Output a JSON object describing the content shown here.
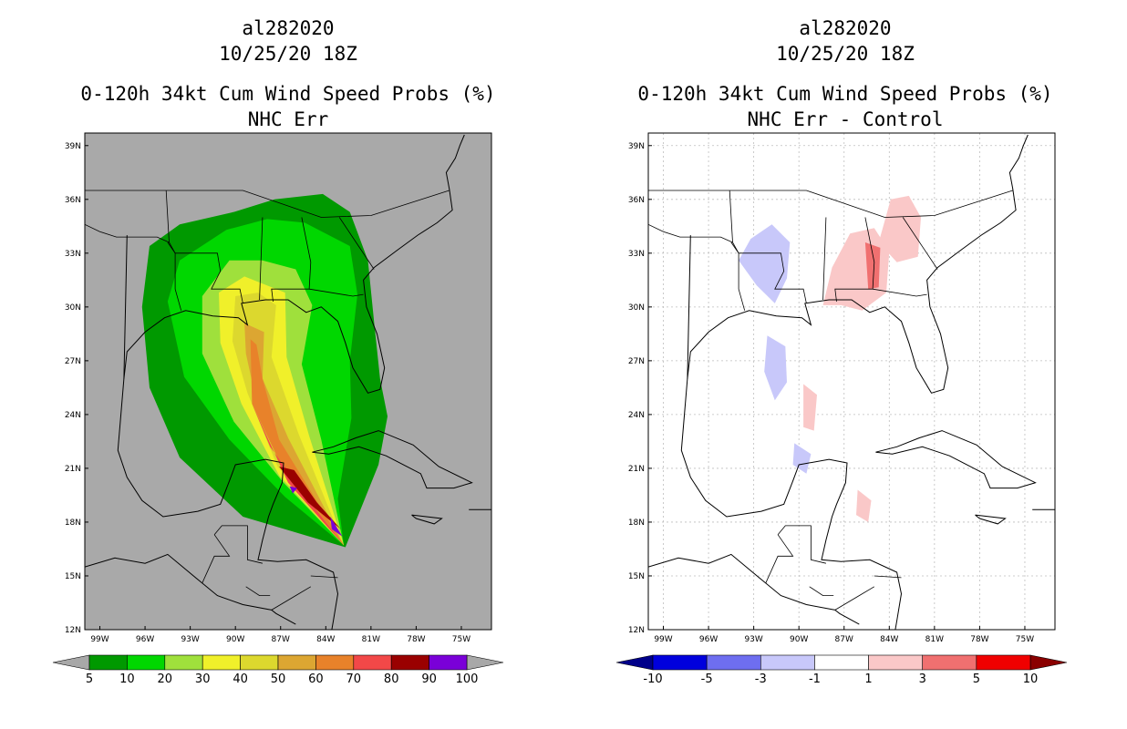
{
  "left_panel": {
    "storm_id": "al282020",
    "datetime": "10/25/20 18Z",
    "product": "0-120h 34kt Cum Wind Speed Probs (%)",
    "subtitle": "NHC Err",
    "colorbar": {
      "labels": [
        "5",
        "10",
        "20",
        "30",
        "40",
        "50",
        "60",
        "70",
        "80",
        "90",
        "100"
      ],
      "colors": [
        "#009900",
        "#00d700",
        "#9fe03c",
        "#f0f02a",
        "#dcd82e",
        "#dca632",
        "#e8822a",
        "#f24848",
        "#9a0000",
        "#7a00d8"
      ],
      "under_color": "#a8a8a8",
      "over_color": "#a8a8a8"
    }
  },
  "right_panel": {
    "storm_id": "al282020",
    "datetime": "10/25/20 18Z",
    "product": "0-120h 34kt Cum Wind Speed Probs (%)",
    "subtitle": "NHC Err - Control",
    "colorbar": {
      "labels": [
        "-10",
        "-5",
        "-3",
        "-1",
        "1",
        "3",
        "5",
        "10"
      ],
      "colors": [
        "#0000dd",
        "#6e6ef0",
        "#c8c8fa",
        "#ffffff",
        "#fac8c8",
        "#f07070",
        "#f00000"
      ],
      "under_color": "#00008a",
      "over_color": "#8a0000"
    }
  },
  "map": {
    "lat_ticks": [
      "39N",
      "36N",
      "33N",
      "30N",
      "27N",
      "24N",
      "21N",
      "18N",
      "15N",
      "12N"
    ],
    "lon_ticks": [
      "99W",
      "96W",
      "93W",
      "90W",
      "87W",
      "84W",
      "81W",
      "78W",
      "75W"
    ],
    "lat_range": [
      12,
      39.7
    ],
    "lon_range": [
      -100,
      -73
    ],
    "background_left": "#a9a9a9",
    "background_right": "#ffffff"
  },
  "chart_data": {
    "type": "heatmap",
    "title": "al282020 10/25/20 18Z 0-120h 34kt Cum Wind Speed Probs (%)",
    "panels": [
      "NHC Err",
      "NHC Err - Control"
    ],
    "units": "%",
    "probability_contours": [
      {
        "level": 5,
        "points": [
          [
            -84.2,
            36.3
          ],
          [
            -82.4,
            35.3
          ],
          [
            -81.2,
            32.6
          ],
          [
            -80.8,
            29.2
          ],
          [
            -80.4,
            26
          ],
          [
            -79.9,
            23.9
          ],
          [
            -80.5,
            21.2
          ],
          [
            -82.7,
            16.6
          ],
          [
            -89.5,
            18.3
          ],
          [
            -93.7,
            21.6
          ],
          [
            -95.7,
            25.5
          ],
          [
            -96.2,
            30
          ],
          [
            -95.7,
            33.4
          ],
          [
            -93.7,
            34.6
          ],
          [
            -90.1,
            35.3
          ],
          [
            -87.4,
            36
          ]
        ]
      },
      {
        "level": 10,
        "points": [
          [
            -85.4,
            34.7
          ],
          [
            -82.4,
            33.4
          ],
          [
            -81.9,
            30.7
          ],
          [
            -82.4,
            27
          ],
          [
            -82.3,
            23.8
          ],
          [
            -83.2,
            19.3
          ],
          [
            -82.8,
            16.7
          ],
          [
            -86.7,
            19.4
          ],
          [
            -90.4,
            22.6
          ],
          [
            -93.4,
            26.1
          ],
          [
            -94.5,
            30.3
          ],
          [
            -93.7,
            32.6
          ],
          [
            -90.6,
            34.3
          ],
          [
            -87.9,
            34.9
          ]
        ]
      },
      {
        "level": 20,
        "points": [
          [
            -86,
            32.1
          ],
          [
            -84.9,
            30.1
          ],
          [
            -85.6,
            26.8
          ],
          [
            -84.3,
            22.6
          ],
          [
            -82.8,
            16.7
          ],
          [
            -86.8,
            20.2
          ],
          [
            -90.1,
            23.6
          ],
          [
            -92.2,
            27.4
          ],
          [
            -92.2,
            30.6
          ],
          [
            -90.4,
            32.6
          ],
          [
            -88.2,
            32.6
          ]
        ]
      },
      {
        "level": 30,
        "points": [
          [
            -86.7,
            30.8
          ],
          [
            -86.6,
            27.2
          ],
          [
            -85.1,
            22.8
          ],
          [
            -82.8,
            16.7
          ],
          [
            -87.1,
            20.6
          ],
          [
            -89.6,
            24.6
          ],
          [
            -91,
            28
          ],
          [
            -91.1,
            30.8
          ],
          [
            -89.4,
            31.7
          ]
        ]
      },
      {
        "level": 40,
        "points": [
          [
            -87.3,
            30.1
          ],
          [
            -87.6,
            27.2
          ],
          [
            -85.8,
            22.9
          ],
          [
            -82.8,
            16.7
          ],
          [
            -87.2,
            21.1
          ],
          [
            -89.2,
            25.2
          ],
          [
            -90.2,
            28.1
          ],
          [
            -90,
            30.6
          ],
          [
            -88.5,
            30.8
          ]
        ]
      },
      {
        "level": 50,
        "points": [
          [
            -88.1,
            28.6
          ],
          [
            -88.2,
            26
          ],
          [
            -86.5,
            22.7
          ],
          [
            -82.8,
            16.7
          ],
          [
            -87,
            21.2
          ],
          [
            -88.6,
            24.7
          ],
          [
            -89.3,
            27.4
          ],
          [
            -89.4,
            29.1
          ]
        ]
      },
      {
        "level": 60,
        "points": [
          [
            -88.2,
            26
          ],
          [
            -87.1,
            22.6
          ],
          [
            -82.8,
            16.7
          ],
          [
            -87.2,
            21.6
          ],
          [
            -88.9,
            24.6
          ],
          [
            -89,
            28.2
          ],
          [
            -88.6,
            27.9
          ]
        ]
      },
      {
        "level": 70,
        "points": [
          [
            -87.7,
            22.2
          ],
          [
            -85.1,
            19.2
          ],
          [
            -82.8,
            16.7
          ],
          [
            -86.5,
            20.2
          ],
          [
            -88.9,
            24.6
          ]
        ]
      },
      {
        "level": 80,
        "points": [
          [
            -86.1,
            20.9
          ],
          [
            -84.6,
            19.1
          ],
          [
            -83,
            17.6
          ],
          [
            -85.2,
            19.1
          ],
          [
            -87.1,
            21.1
          ]
        ]
      },
      {
        "level": 90,
        "points": [
          [
            -83.7,
            18.3
          ],
          [
            -82.9,
            17.2
          ],
          [
            -83.6,
            17.6
          ]
        ]
      }
    ],
    "difference_regions": [
      {
        "bin": "-3 to -1",
        "centroid": [
          -91.8,
          32.2
        ]
      },
      {
        "bin": "-3 to -1",
        "centroid": [
          -91.4,
          27.0
        ]
      },
      {
        "bin": "-3 to -1",
        "centroid": [
          -89.8,
          21.6
        ]
      },
      {
        "bin": "1 to 3",
        "centroid": [
          -86.2,
          32.5
        ]
      },
      {
        "bin": "1 to 3",
        "centroid": [
          -83.1,
          34.4
        ]
      },
      {
        "bin": "1 to 3",
        "centroid": [
          -89.3,
          24.5
        ]
      },
      {
        "bin": "1 to 3",
        "centroid": [
          -85.7,
          19.0
        ]
      },
      {
        "bin": "3 to 5",
        "centroid": [
          -85.1,
          32.3
        ]
      }
    ]
  }
}
